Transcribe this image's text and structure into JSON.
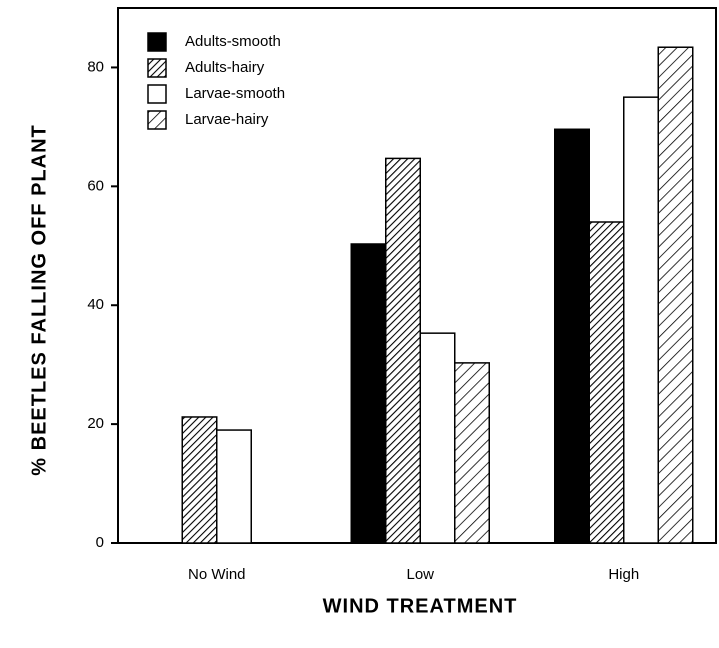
{
  "chart_data": {
    "type": "bar",
    "categories": [
      "No Wind",
      "Low",
      "High"
    ],
    "series": [
      {
        "name": "Adults-smooth",
        "color": "#000000",
        "hatch": "none",
        "values": [
          0,
          50.3,
          69.6
        ]
      },
      {
        "name": "Adults-hairy",
        "color": "#ffffff",
        "hatch": "dense",
        "values": [
          21.2,
          64.7,
          54
        ]
      },
      {
        "name": "Larvae-smooth",
        "color": "#ffffff",
        "hatch": "none",
        "values": [
          19,
          35.3,
          75
        ]
      },
      {
        "name": "Larvae-hairy",
        "color": "#ffffff",
        "hatch": "sparse",
        "values": [
          0,
          30.3,
          83.4
        ]
      }
    ],
    "ylim": [
      0,
      90
    ],
    "yticks": [
      0,
      20,
      40,
      60,
      80
    ],
    "xlabel": "WIND TREATMENT",
    "ylabel": "% BEETLES FALLING OFF PLANT",
    "legend": "upper left",
    "grid": false
  }
}
